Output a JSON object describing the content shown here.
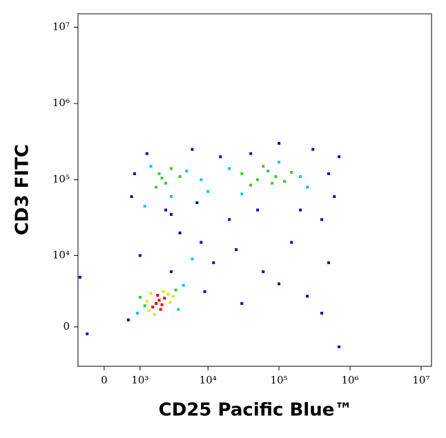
{
  "chart_data": {
    "type": "scatter",
    "xlabel": "CD25 Pacific Blue™",
    "ylabel": "CD3 FITC",
    "xscale": "biexponential",
    "yscale": "biexponential",
    "xlim": [
      -660,
      14000000
    ],
    "ylim": [
      -3500,
      15000000
    ],
    "xticks": [
      0,
      {
        "value": 1000,
        "label": "10³"
      },
      {
        "value": 10000,
        "label": "10⁴"
      },
      {
        "value": 100000,
        "label": "10⁵"
      },
      {
        "value": 1000000,
        "label": "10⁶"
      },
      {
        "value": 10000000,
        "label": "10⁷"
      }
    ],
    "yticks": [
      0,
      {
        "value": 10000,
        "label": "10⁴"
      },
      {
        "value": 100000,
        "label": "10⁵"
      },
      {
        "value": 1000000,
        "label": "10⁶"
      },
      {
        "value": 10000000,
        "label": "10⁷"
      }
    ],
    "series": [
      {
        "color": "#0000cc",
        "x": [
          1300,
          800,
          700,
          3000,
          6000,
          15000,
          40000,
          100000,
          300000,
          500000,
          600000,
          400000,
          200000,
          50000,
          20000,
          8000,
          4000,
          12000,
          25000,
          60000,
          100000,
          250000,
          400000,
          700000,
          -400,
          -600,
          600,
          1000,
          3000,
          9000,
          150000,
          700000,
          30000,
          500000,
          7000,
          2500
        ],
        "values": [
          220000,
          120000,
          60000,
          35000,
          250000,
          200000,
          220000,
          300000,
          250000,
          120000,
          60000,
          30000,
          40000,
          40000,
          30000,
          15000,
          20000,
          8000,
          12000,
          6000,
          4000,
          2500,
          1000,
          -1500,
          -500,
          5000,
          500,
          10000,
          6000,
          3000,
          15000,
          200000,
          1800,
          8000,
          50000,
          40000
        ]
      },
      {
        "color": "#00c8e6",
        "x": [
          1500,
          5000,
          8000,
          20000,
          200000,
          250000,
          10000,
          3000,
          100000,
          30000,
          4500,
          900,
          3800,
          6000,
          1200
        ],
        "values": [
          150000,
          130000,
          100000,
          140000,
          110000,
          80000,
          70000,
          60000,
          170000,
          65000,
          3800,
          1000,
          1300,
          9000,
          45000
        ]
      },
      {
        "color": "#33cc33",
        "x": [
          2000,
          2500,
          3000,
          1800,
          4000,
          30000,
          50000,
          70000,
          90000,
          60000,
          120000,
          40000,
          150000,
          2200,
          80000,
          1200,
          3500,
          1000
        ],
        "values": [
          120000,
          90000,
          140000,
          80000,
          110000,
          120000,
          100000,
          130000,
          110000,
          150000,
          95000,
          85000,
          125000,
          105000,
          90000,
          1600,
          3200,
          2400
        ]
      },
      {
        "color": "#e6e600",
        "x": [
          1400,
          2700,
          1300,
          2900,
          2300,
          1700,
          3200,
          1500
        ],
        "values": [
          1200,
          2700,
          2000,
          1900,
          3000,
          900,
          2500,
          2800
        ]
      },
      {
        "color": "#e60000",
        "x": [
          1800,
          2000,
          2200,
          1600,
          2400,
          1900,
          2100
        ],
        "values": [
          1800,
          2100,
          1700,
          1500,
          2300,
          2600,
          1300
        ]
      }
    ]
  }
}
